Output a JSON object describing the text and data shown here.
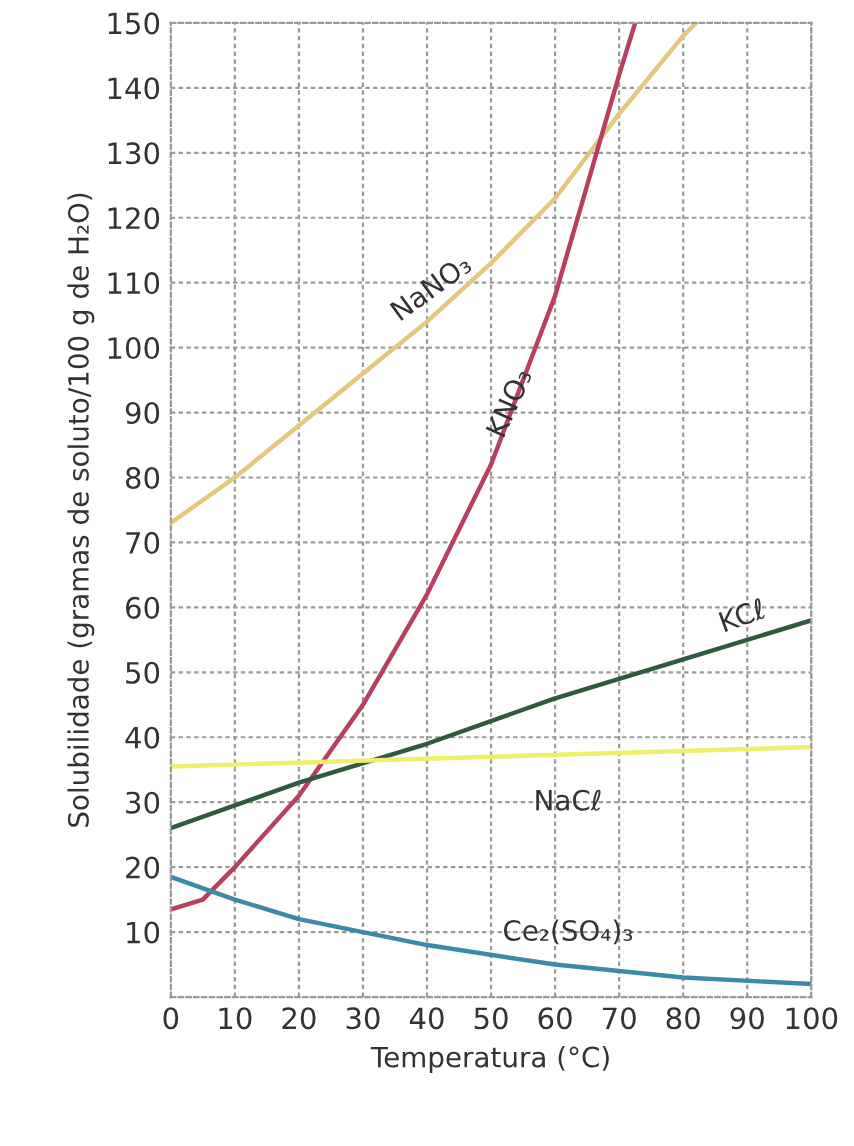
{
  "chart_data": {
    "type": "line",
    "xlabel": "Temperatura (°C)",
    "ylabel": "Solubilidade (gramas de soluto/100 g de H₂O)",
    "xlim": [
      0,
      100
    ],
    "ylim": [
      0,
      150
    ],
    "xticks": [
      0,
      10,
      20,
      30,
      40,
      50,
      60,
      70,
      80,
      90,
      100
    ],
    "yticks": [
      {
        "value": 0,
        "label": null
      },
      10,
      20,
      30,
      40,
      50,
      60,
      70,
      80,
      90,
      100,
      110,
      120,
      130,
      140,
      150
    ],
    "grid": true,
    "legend": false,
    "marker": "none",
    "line_style": "solid",
    "series": [
      {
        "name": "NaNO₃",
        "color": "#e3c77e",
        "x": [
          0,
          10,
          20,
          30,
          40,
          50,
          60,
          70,
          80,
          82
        ],
        "values": [
          73,
          80,
          88,
          96,
          104,
          113,
          123,
          136,
          148,
          150
        ]
      },
      {
        "name": "KNO₃",
        "color": "#b8405e",
        "x": [
          0,
          5,
          10,
          20,
          30,
          40,
          50,
          60,
          65,
          70,
          72.5
        ],
        "values": [
          13.5,
          15,
          20,
          31,
          45,
          62,
          82,
          108,
          125,
          142,
          150
        ]
      },
      {
        "name": "KCℓ",
        "color": "#2f5a3f",
        "x": [
          0,
          20,
          40,
          60,
          80,
          100
        ],
        "values": [
          26,
          33,
          39,
          46,
          52,
          58
        ]
      },
      {
        "name": "NaCℓ",
        "color": "#eef06a",
        "x": [
          0,
          50,
          100
        ],
        "values": [
          35.5,
          37,
          38.5
        ]
      },
      {
        "name": "Ce₂(SO₄)₃",
        "color": "#3d8aa8",
        "x": [
          0,
          10,
          20,
          30,
          40,
          60,
          80,
          100
        ],
        "values": [
          18.5,
          15,
          12,
          10,
          8,
          5,
          3,
          2
        ]
      }
    ]
  }
}
